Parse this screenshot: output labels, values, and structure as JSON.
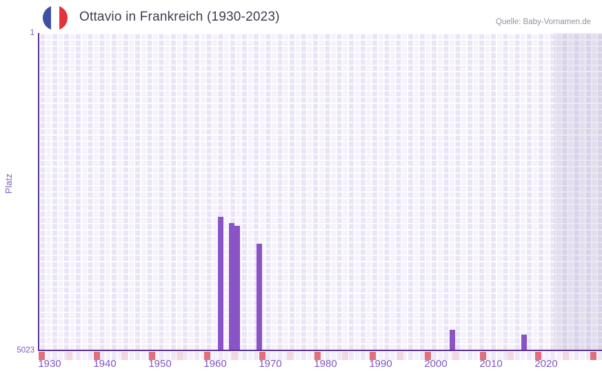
{
  "header": {
    "title": "Ottavio in Frankreich (1930-2023)",
    "source": "Quelle: Baby-Vornamen.de",
    "flag_icon": "france-flag",
    "flag_colors": {
      "blue": "#3d51a3",
      "white": "#ffffff",
      "red": "#e6303c"
    }
  },
  "chart_data": {
    "type": "bar",
    "title": "Ottavio in Frankreich (1930-2023)",
    "xlabel": "",
    "ylabel": "Platz",
    "y_axis": {
      "top_label": "1",
      "bottom_label": "5023",
      "min": 1,
      "max": 5023,
      "inverted": true
    },
    "x_tick_labels": [
      1930,
      1940,
      1950,
      1960,
      1970,
      1980,
      1990,
      2000,
      2010,
      2020
    ],
    "x_range_years": [
      1928,
      2030
    ],
    "bars": [
      {
        "year": 1961,
        "platz": 2900
      },
      {
        "year": 1963,
        "platz": 3000
      },
      {
        "year": 1964,
        "platz": 3045
      },
      {
        "year": 1968,
        "platz": 3330
      },
      {
        "year": 2003,
        "platz": 4690
      },
      {
        "year": 2016,
        "platz": 4760
      }
    ],
    "legend": null,
    "grid": "plaid-lavender-checker",
    "shaded_region_start_year": 2022
  },
  "colors": {
    "bar": "#8a53c6",
    "axis_line": "#552e91",
    "tick_label": "#7e55c2",
    "decade_tick": "#e1707b",
    "half_decade_tick": "#f2d7e1",
    "plot_bg_light": "#f5f2fc",
    "plot_bg_dark": "#eae5f6",
    "title_text": "#3d3d4e",
    "source_text": "#9191a1"
  }
}
